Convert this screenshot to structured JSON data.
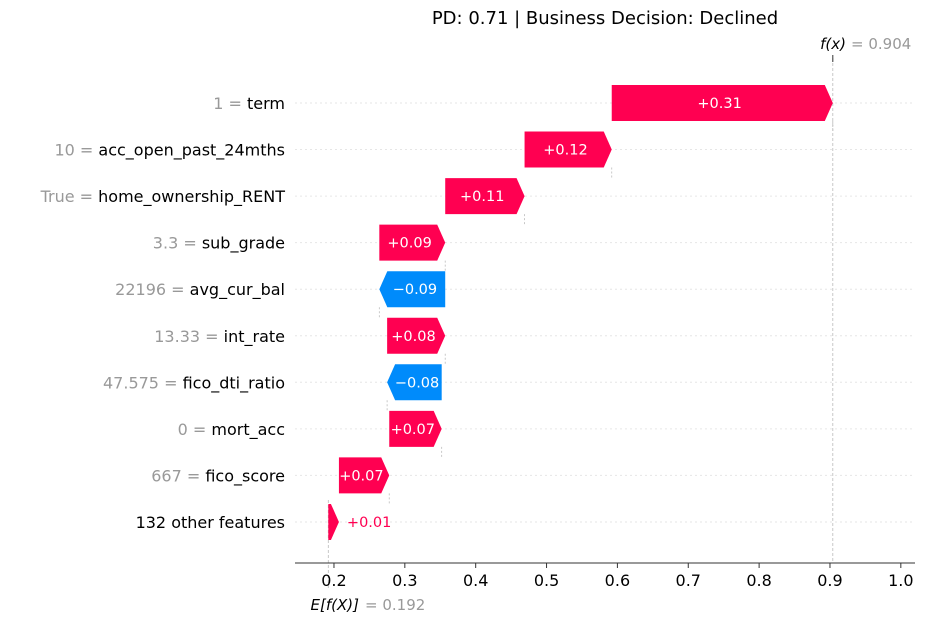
{
  "chart_data": {
    "type": "waterfall",
    "title": "PD: 0.71 | Business Decision: Declined",
    "xlim": [
      0.145,
      1.02
    ],
    "xticks": [
      0.2,
      0.3,
      0.4,
      0.5,
      0.6,
      0.7,
      0.8,
      0.9,
      1.0
    ],
    "xtick_labels": [
      "0.2",
      "0.3",
      "0.4",
      "0.5",
      "0.6",
      "0.7",
      "0.8",
      "0.9",
      "1.0"
    ],
    "base_value": 0.192,
    "base_label": "E[f(X)]",
    "base_value_label": "= 0.192",
    "output_value": 0.904,
    "output_label": "f(x)",
    "output_value_label": "= 0.904",
    "colors": {
      "positive": "#ff0051",
      "negative": "#008bfb",
      "value_text": "#999999"
    },
    "rows": [
      {
        "value_text": "1",
        "feature": "term",
        "start": 0.592,
        "end": 0.904,
        "label": "+0.31"
      },
      {
        "value_text": "10",
        "feature": "acc_open_past_24mths",
        "start": 0.469,
        "end": 0.592,
        "label": "+0.12"
      },
      {
        "value_text": "True",
        "feature": "home_ownership_RENT",
        "start": 0.357,
        "end": 0.469,
        "label": "+0.11"
      },
      {
        "value_text": "3.3",
        "feature": "sub_grade",
        "start": 0.264,
        "end": 0.357,
        "label": "+0.09"
      },
      {
        "value_text": "22196",
        "feature": "avg_cur_bal",
        "start": 0.357,
        "end": 0.264,
        "label": "−0.09"
      },
      {
        "value_text": "13.33",
        "feature": "int_rate",
        "start": 0.275,
        "end": 0.357,
        "label": "+0.08"
      },
      {
        "value_text": "47.575",
        "feature": "fico_dti_ratio",
        "start": 0.352,
        "end": 0.275,
        "label": "−0.08"
      },
      {
        "value_text": "0",
        "feature": "mort_acc",
        "start": 0.278,
        "end": 0.352,
        "label": "+0.07"
      },
      {
        "value_text": "667",
        "feature": "fico_score",
        "start": 0.207,
        "end": 0.278,
        "label": "+0.07"
      },
      {
        "value_text": "",
        "feature": "132 other features",
        "start": 0.192,
        "end": 0.207,
        "label": "+0.01"
      }
    ]
  }
}
